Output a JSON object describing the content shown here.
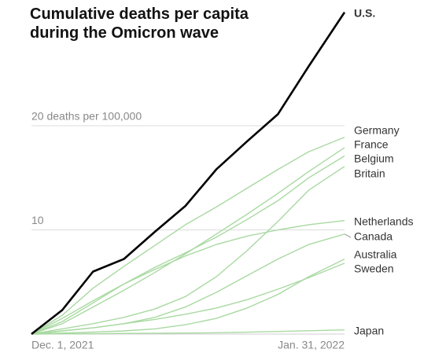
{
  "chart_data": {
    "type": "line",
    "title": "Cumulative deaths per capita during the Omicron wave",
    "x": [
      "2021-12-01",
      "2021-12-07",
      "2021-12-13",
      "2021-12-19",
      "2021-12-25",
      "2021-12-31",
      "2022-01-06",
      "2022-01-12",
      "2022-01-18",
      "2022-01-24",
      "2022-01-31"
    ],
    "xlim": [
      "2021-12-01",
      "2022-01-31"
    ],
    "xticks": [
      {
        "value": "2021-12-01",
        "label": "Dec. 1, 2021"
      },
      {
        "value": "2022-01-31",
        "label": "Jan. 31, 2022"
      }
    ],
    "ylim": [
      0,
      32
    ],
    "yticks": [
      {
        "value": 20,
        "label": "20 deaths per 100,000"
      },
      10
    ],
    "grid": true,
    "series": [
      {
        "name": "U.S.",
        "color": "#000000",
        "values": [
          0,
          2.3,
          6,
          7.2,
          9.8,
          12.3,
          15.8,
          18.5,
          21.1,
          25.7,
          30.9
        ]
      },
      {
        "name": "Germany",
        "color": "#a9d9a2",
        "values": [
          0,
          1.8,
          4.4,
          6.5,
          8.5,
          10.5,
          12.2,
          14,
          15.8,
          17.5,
          18.9
        ]
      },
      {
        "name": "France",
        "color": "#a9d9a2",
        "values": [
          0,
          1,
          2.6,
          4.2,
          5.9,
          7.7,
          9.6,
          11.5,
          13.5,
          15.6,
          17.9
        ]
      },
      {
        "name": "Belgium",
        "color": "#a9d9a2",
        "values": [
          0,
          1.2,
          3,
          4.8,
          6.4,
          7.8,
          9.3,
          11,
          12.8,
          15,
          17.1
        ]
      },
      {
        "name": "Britain",
        "color": "#a9d9a2",
        "values": [
          0,
          0.5,
          1,
          1.6,
          2.4,
          3.6,
          5.5,
          8,
          10.8,
          13.8,
          16.1
        ]
      },
      {
        "name": "Netherlands",
        "color": "#a9d9a2",
        "values": [
          0,
          1.5,
          3.2,
          4.8,
          6.2,
          7.5,
          8.6,
          9.4,
          10,
          10.5,
          10.9
        ]
      },
      {
        "name": "Canada",
        "color": "#a9d9a2",
        "values": [
          0,
          0.3,
          0.6,
          1,
          1.6,
          2.6,
          4,
          5.6,
          7.2,
          8.6,
          9.6
        ]
      },
      {
        "name": "Australia",
        "color": "#a9d9a2",
        "values": [
          0,
          0.1,
          0.2,
          0.3,
          0.5,
          0.9,
          1.5,
          2.5,
          3.8,
          5.5,
          7.2
        ]
      },
      {
        "name": "Sweden",
        "color": "#a9d9a2",
        "values": [
          0,
          0.3,
          0.6,
          1,
          1.4,
          1.9,
          2.5,
          3.3,
          4.3,
          5.4,
          6.8
        ]
      },
      {
        "name": "Japan",
        "color": "#a9d9a2",
        "values": [
          0,
          0.02,
          0.04,
          0.06,
          0.08,
          0.1,
          0.13,
          0.18,
          0.25,
          0.32,
          0.4
        ]
      }
    ]
  }
}
